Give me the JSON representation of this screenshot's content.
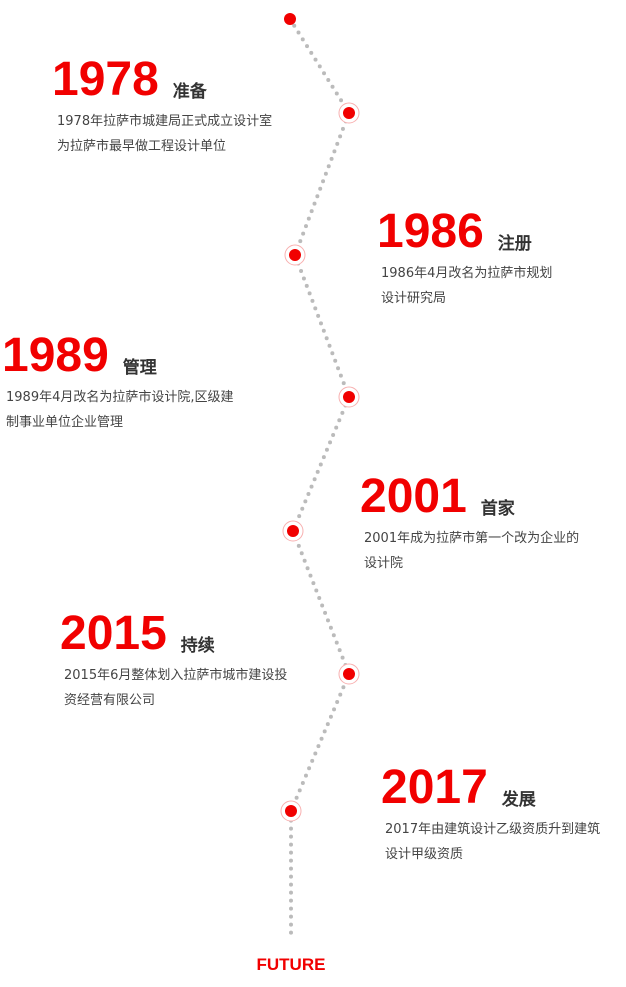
{
  "colors": {
    "accent": "#f10000",
    "line": "#bbbbbb",
    "text": "#444444"
  },
  "milestones": [
    {
      "year": "1978",
      "title": "准备",
      "lines": [
        "1978年拉萨市城建局正式成立设计室",
        "为拉萨市最早做工程设计单位"
      ]
    },
    {
      "year": "1986",
      "title": "注册",
      "lines": [
        "1986年4月改名为拉萨市规划",
        "设计研究局"
      ]
    },
    {
      "year": "1989",
      "title": "管理",
      "lines": [
        "1989年4月改名为拉萨市设计院,区级建",
        "制事业单位企业管理"
      ]
    },
    {
      "year": "2001",
      "title": "首家",
      "lines": [
        "2001年成为拉萨市第一个改为企业的",
        "设计院"
      ]
    },
    {
      "year": "2015",
      "title": "持续",
      "lines": [
        "2015年6月整体划入拉萨市城市建设投",
        "资经营有限公司"
      ]
    },
    {
      "year": "2017",
      "title": "发展",
      "lines": [
        "2017年由建筑设计乙级资质升到建筑",
        "设计甲级资质"
      ]
    }
  ],
  "future_label": "FUTURE"
}
